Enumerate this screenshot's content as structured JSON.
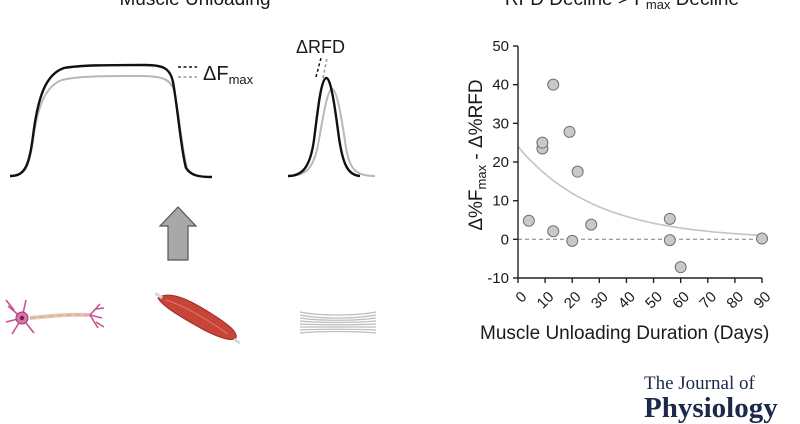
{
  "figure": {
    "left_title": "Muscle Unloading",
    "right_title_prefix": "RFD Decline > F",
    "right_title_sub": "max",
    "right_title_suffix": " Decline",
    "fmax_label_main": "ΔF",
    "fmax_label_sub": "max",
    "rfd_label": "ΔRFD",
    "colors": {
      "trace_before": "#111111",
      "trace_after": "#b8b8b8",
      "point_fill": "#c9c9c9",
      "point_stroke": "#707070",
      "arrow_fill": "#a8a8a8",
      "muscle": "#c84438",
      "neuron": "#c7508f",
      "fiber": "#bdbdbd"
    },
    "icons": [
      "neuron-icon",
      "muscle-icon",
      "muscle-fiber-icon",
      "up-arrow-icon"
    ]
  },
  "journal": {
    "line1": "The Journal of",
    "line2": "Physiology"
  },
  "chart_data": {
    "type": "scatter",
    "title": "RFD Decline > Fmax Decline",
    "xlabel": "Muscle Unloading Duration (Days)",
    "ylabel_main": "Δ%F",
    "ylabel_sub": "max",
    "ylabel_rest": " - Δ%RFD",
    "xlim": [
      0,
      90
    ],
    "ylim": [
      -10,
      50
    ],
    "xticks": [
      0,
      10,
      20,
      30,
      40,
      50,
      60,
      70,
      80,
      90
    ],
    "yticks": [
      -10,
      0,
      10,
      20,
      30,
      40,
      50
    ],
    "reference_line_y": 0,
    "points": [
      {
        "x": 4,
        "y": 4.8
      },
      {
        "x": 9,
        "y": 23.5
      },
      {
        "x": 9,
        "y": 25
      },
      {
        "x": 13,
        "y": 40
      },
      {
        "x": 13,
        "y": 2.1
      },
      {
        "x": 19,
        "y": 27.8
      },
      {
        "x": 20,
        "y": -0.4
      },
      {
        "x": 22,
        "y": 17.5
      },
      {
        "x": 27,
        "y": 3.8
      },
      {
        "x": 56,
        "y": 5.3
      },
      {
        "x": 56,
        "y": -0.2
      },
      {
        "x": 60,
        "y": -7.2
      },
      {
        "x": 90,
        "y": 0.2
      }
    ],
    "fit": {
      "type": "exponential_decay",
      "y0": 24,
      "k": 0.035
    }
  }
}
